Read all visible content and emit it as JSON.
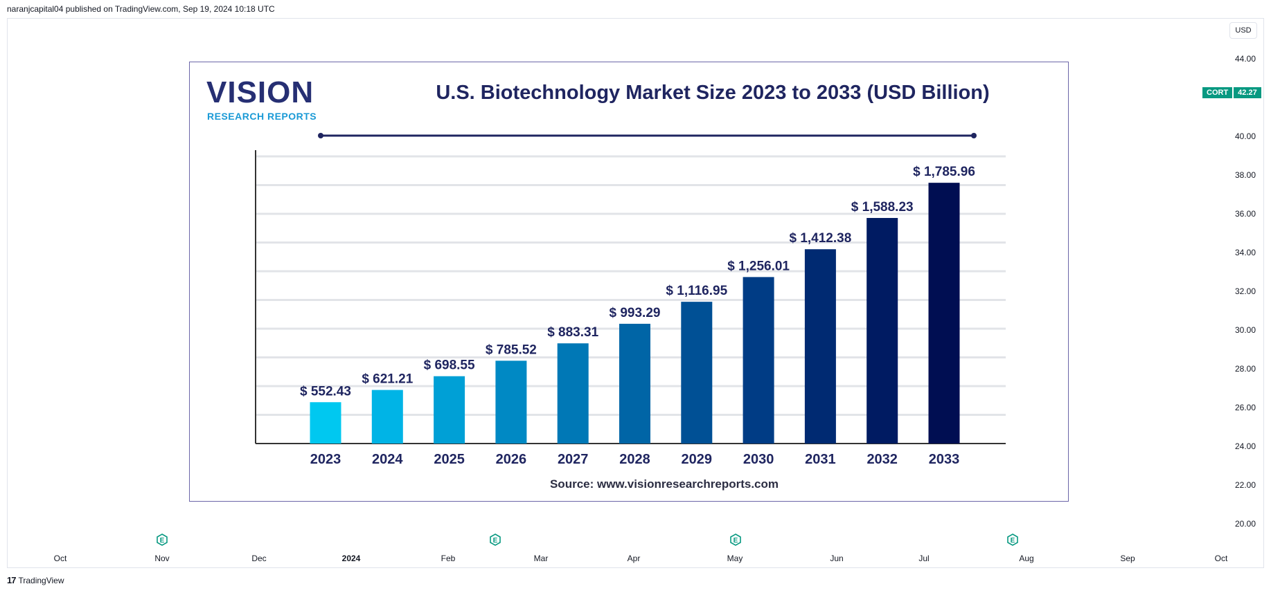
{
  "header": {
    "text": "naranjcapital04 published on TradingView.com, Sep 19, 2024 10:18 UTC"
  },
  "price_axis": {
    "currency": "USD",
    "ticks": [
      "44.00",
      "40.00",
      "38.00",
      "36.00",
      "34.00",
      "32.00",
      "30.00",
      "28.00",
      "26.00",
      "24.00",
      "22.00",
      "20.00"
    ]
  },
  "symbol_badge": {
    "symbol": "CORT",
    "price": "42.27",
    "color": "#089981"
  },
  "time_axis": {
    "ticks": [
      "Oct",
      "Nov",
      "Dec",
      "2024",
      "Feb",
      "Mar",
      "Apr",
      "May",
      "Jun",
      "Jul",
      "Aug",
      "Sep",
      "Oct"
    ]
  },
  "earnings_marker": {
    "label": "E"
  },
  "footer": {
    "brand": "TradingView",
    "logo_glyph": "17"
  },
  "infographic": {
    "logo_main": "VISION",
    "logo_sub": "RESEARCH REPORTS",
    "source": "Source: www.visionresearchreports.com"
  },
  "chart_data": {
    "type": "bar",
    "title": "U.S. Biotechnology Market Size 2023 to 2033 (USD Billion)",
    "categories": [
      "2023",
      "2024",
      "2025",
      "2026",
      "2027",
      "2028",
      "2029",
      "2030",
      "2031",
      "2032",
      "2033"
    ],
    "values": [
      552.43,
      621.21,
      698.55,
      785.52,
      883.31,
      993.29,
      1116.95,
      1256.01,
      1412.38,
      1588.23,
      1785.96
    ],
    "labels": [
      "$ 552.43",
      "$ 621.21",
      "$ 698.55",
      "$ 785.52",
      "$ 883.31",
      "$ 993.29",
      "$ 1,116.95",
      "$ 1,256.01",
      "$ 1,412.38",
      "$ 1,588.23",
      "$ 1,785.96"
    ],
    "colors": [
      "#00c8f0",
      "#00b4e6",
      "#00a0d6",
      "#0089c4",
      "#0078b6",
      "#0065a6",
      "#005095",
      "#003c85",
      "#002a72",
      "#001b62",
      "#000e52"
    ],
    "xlabel": "",
    "ylabel": "",
    "ylim": [
      320,
      1950
    ],
    "grid": true
  }
}
